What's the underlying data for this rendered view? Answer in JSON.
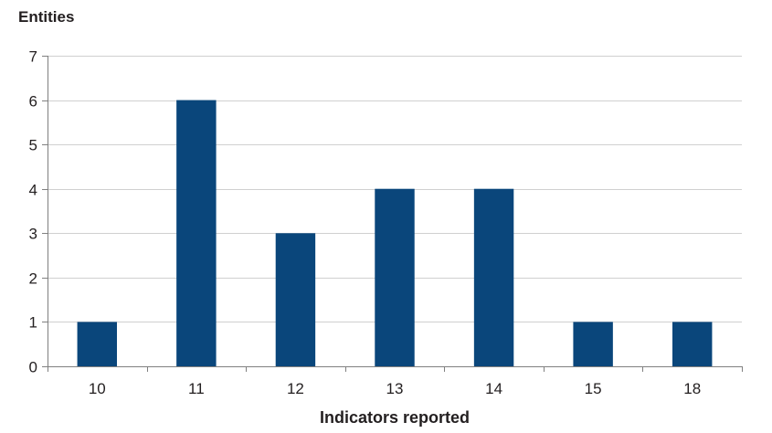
{
  "chart_data": {
    "type": "bar",
    "title": "",
    "ylabel": "Entities",
    "xlabel": "Indicators reported",
    "categories": [
      "10",
      "11",
      "12",
      "13",
      "14",
      "15",
      "18"
    ],
    "values": [
      1,
      6,
      3,
      4,
      4,
      1,
      1
    ],
    "ylim": [
      0,
      7
    ],
    "yticks": [
      0,
      1,
      2,
      3,
      4,
      5,
      6,
      7
    ],
    "grid": true,
    "legend": "none",
    "colors": {
      "bar": "#0a467b",
      "grid": "#d0d0d0",
      "axis": "#808080",
      "text": "#231f20"
    }
  }
}
